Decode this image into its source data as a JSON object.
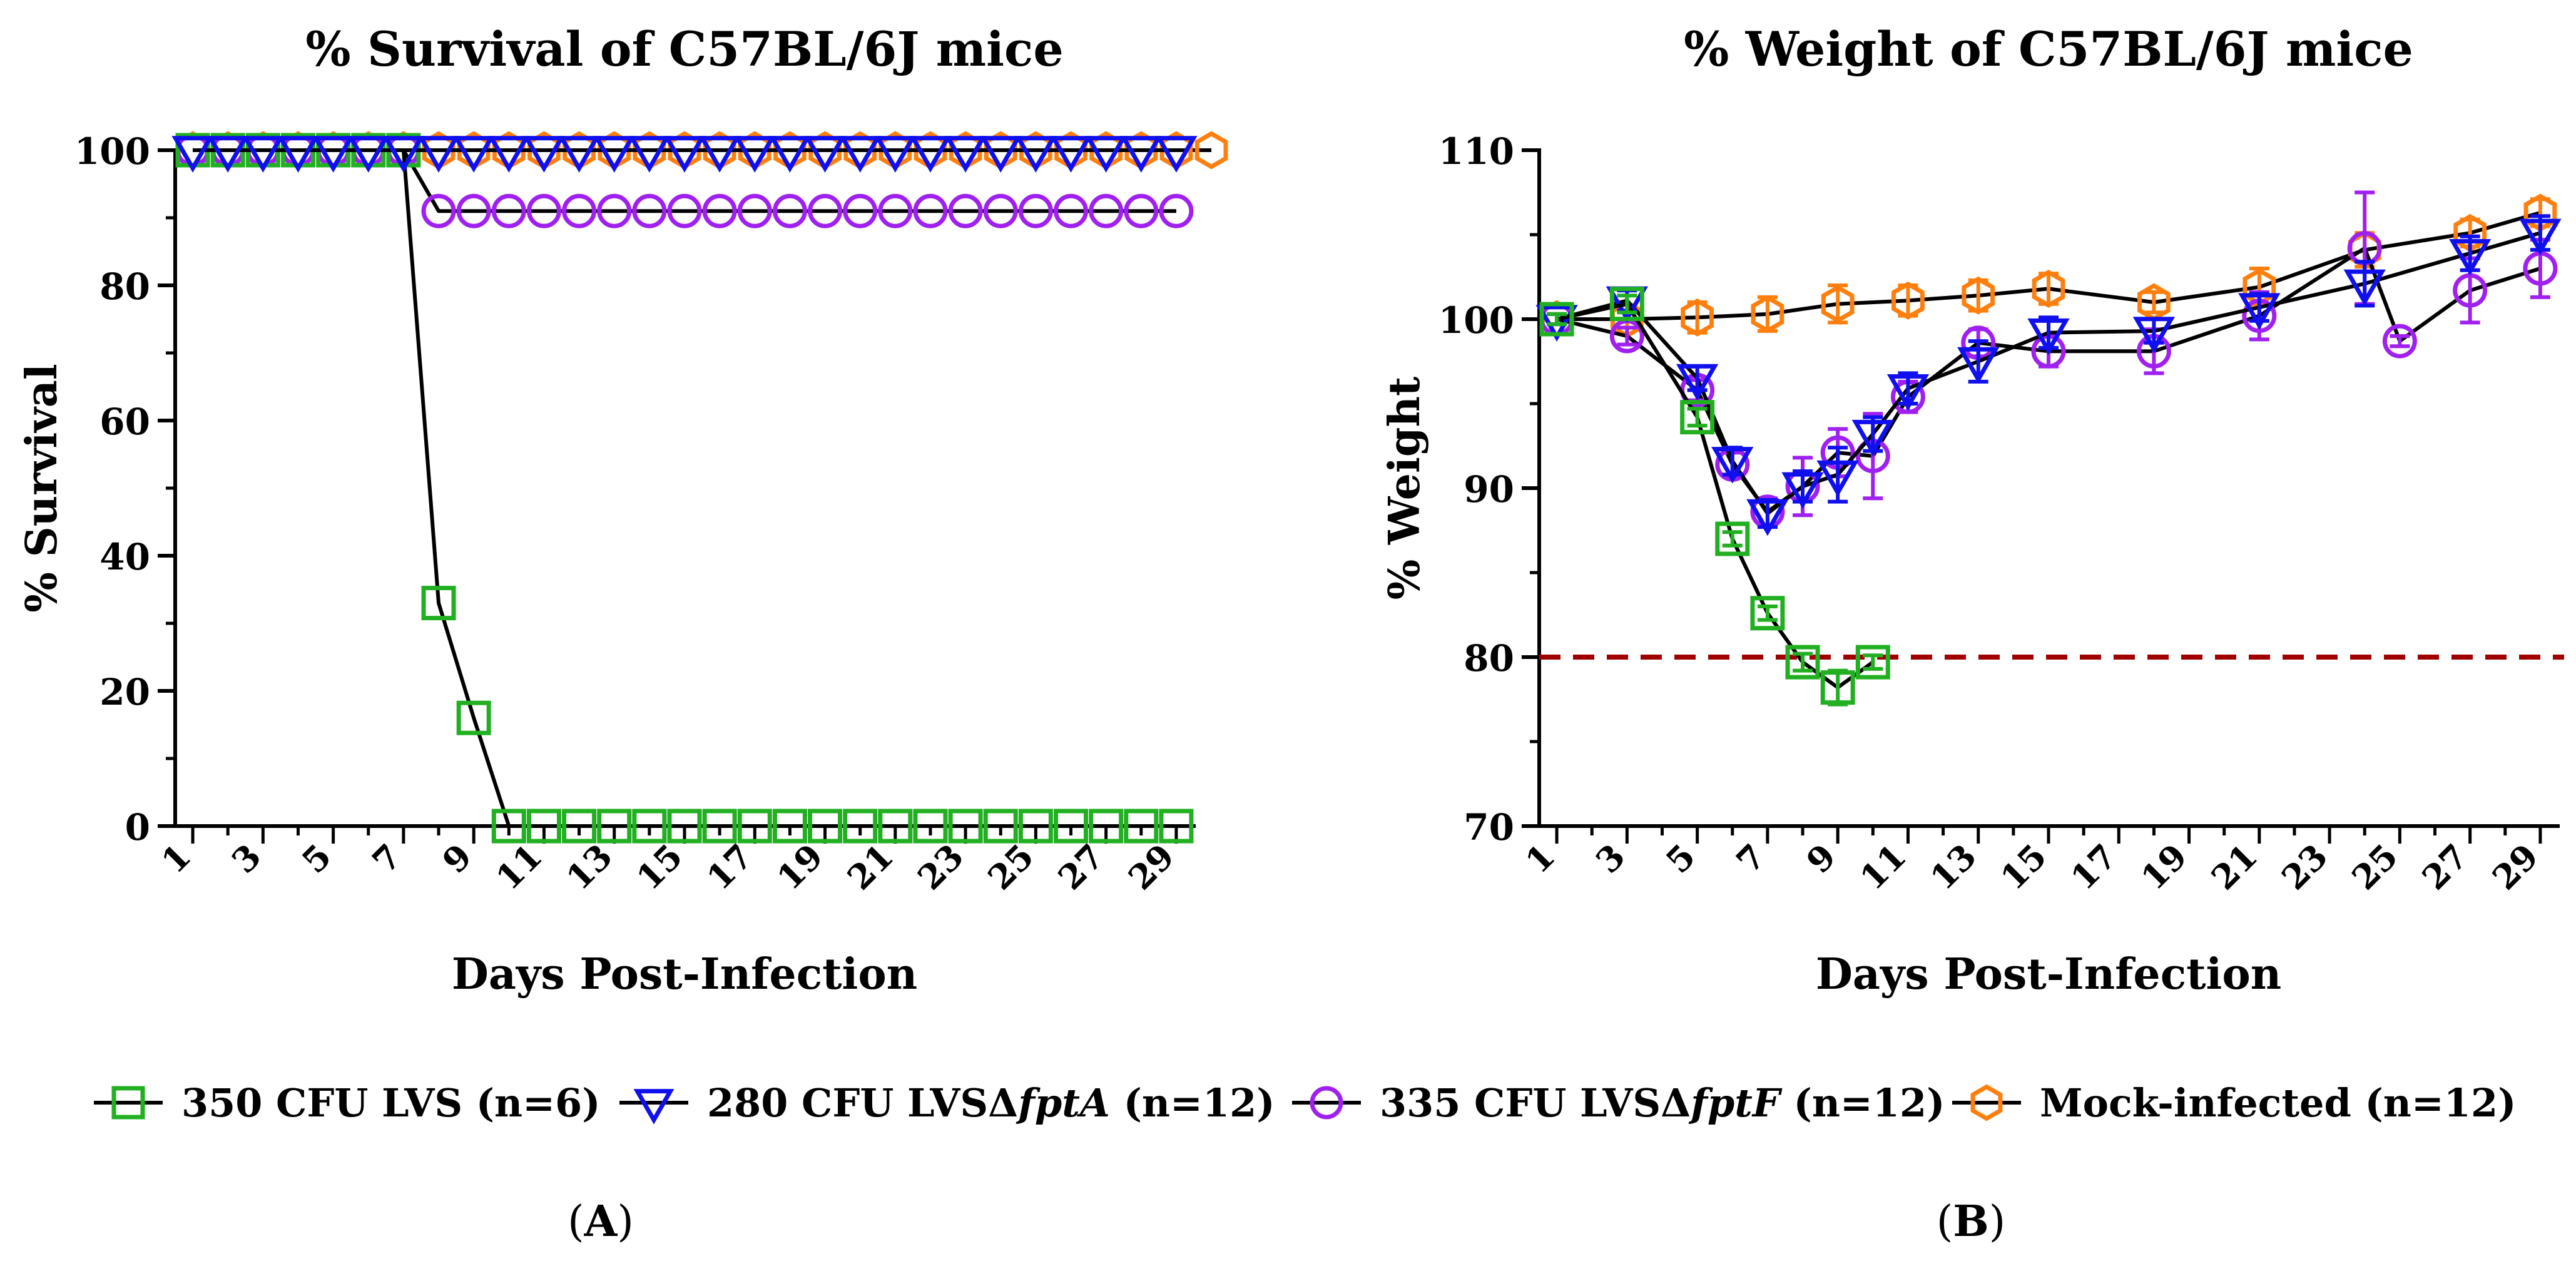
{
  "chart_data": [
    {
      "type": "line",
      "panel_label": "A",
      "title": "% Survival of C57BL/6J mice",
      "xlabel": "Days Post-Infection",
      "ylabel": "% Survival",
      "xlim": [
        0.5,
        29.5
      ],
      "ylim": [
        0,
        100
      ],
      "xticks": [
        1,
        3,
        5,
        7,
        9,
        11,
        13,
        15,
        17,
        19,
        21,
        23,
        25,
        27,
        29
      ],
      "yticks": [
        0,
        20,
        40,
        60,
        80,
        100
      ],
      "series": [
        {
          "name": "Mock-infected",
          "color": "#ff7f0e",
          "marker": "hexagon",
          "x": [
            1,
            2,
            3,
            4,
            5,
            6,
            7,
            8,
            9,
            10,
            11,
            12,
            13,
            14,
            15,
            16,
            17,
            18,
            19,
            20,
            21,
            22,
            23,
            24,
            25,
            26,
            27,
            28,
            29,
            30
          ],
          "y": [
            100,
            100,
            100,
            100,
            100,
            100,
            100,
            100,
            100,
            100,
            100,
            100,
            100,
            100,
            100,
            100,
            100,
            100,
            100,
            100,
            100,
            100,
            100,
            100,
            100,
            100,
            100,
            100,
            100,
            100
          ]
        },
        {
          "name": "335 CFU LVSΔfptF",
          "color": "#a020f0",
          "marker": "circle",
          "x": [
            1,
            2,
            3,
            4,
            5,
            6,
            7,
            8,
            9,
            10,
            11,
            12,
            13,
            14,
            15,
            16,
            17,
            18,
            19,
            20,
            21,
            22,
            23,
            24,
            25,
            26,
            27,
            28,
            29
          ],
          "y": [
            100,
            100,
            100,
            100,
            100,
            100,
            100,
            91,
            91,
            91,
            91,
            91,
            91,
            91,
            91,
            91,
            91,
            91,
            91,
            91,
            91,
            91,
            91,
            91,
            91,
            91,
            91,
            91,
            91
          ]
        },
        {
          "name": "350 CFU LVS",
          "color": "#22b022",
          "marker": "square",
          "x": [
            1,
            2,
            3,
            4,
            5,
            6,
            7,
            8,
            9,
            10,
            11,
            12,
            13,
            14,
            15,
            16,
            17,
            18,
            19,
            20,
            21,
            22,
            23,
            24,
            25,
            26,
            27,
            28,
            29
          ],
          "y": [
            100,
            100,
            100,
            100,
            100,
            100,
            100,
            33,
            16,
            0,
            0,
            0,
            0,
            0,
            0,
            0,
            0,
            0,
            0,
            0,
            0,
            0,
            0,
            0,
            0,
            0,
            0,
            0,
            0
          ]
        },
        {
          "name": "280 CFU LVSΔfptA",
          "color": "#1010ee",
          "marker": "triangle-down",
          "x": [
            1,
            2,
            3,
            4,
            5,
            6,
            7,
            8,
            9,
            10,
            11,
            12,
            13,
            14,
            15,
            16,
            17,
            18,
            19,
            20,
            21,
            22,
            23,
            24,
            25,
            26,
            27,
            28,
            29
          ],
          "y": [
            100,
            100,
            100,
            100,
            100,
            100,
            100,
            100,
            100,
            100,
            100,
            100,
            100,
            100,
            100,
            100,
            100,
            100,
            100,
            100,
            100,
            100,
            100,
            100,
            100,
            100,
            100,
            100,
            100
          ]
        }
      ]
    },
    {
      "type": "line",
      "panel_label": "B",
      "title": "% Weight of C57BL/6J mice",
      "xlabel": "Days Post-Infection",
      "ylabel": "% Weight",
      "xlim": [
        0.5,
        29.5
      ],
      "ylim": [
        70,
        110
      ],
      "xticks": [
        1,
        3,
        5,
        7,
        9,
        11,
        13,
        15,
        17,
        19,
        21,
        23,
        25,
        27,
        29
      ],
      "yticks": [
        70,
        80,
        90,
        100,
        110
      ],
      "reference_line": {
        "y": 80,
        "color": "#a00000",
        "style": "dashed"
      },
      "series": [
        {
          "name": "Mock-infected",
          "color": "#ff7f0e",
          "marker": "hexagon",
          "x": [
            1,
            3,
            5,
            7,
            9,
            11,
            13,
            15,
            18,
            21,
            24,
            27,
            29
          ],
          "y": [
            100,
            100,
            100.1,
            100.3,
            100.9,
            101.1,
            101.4,
            101.8,
            101.0,
            101.9,
            104.1,
            105.1,
            106.3
          ],
          "err": [
            0.3,
            0.5,
            0.9,
            1.0,
            1.1,
            0.9,
            0.9,
            0.9,
            0.6,
            1.1,
            1.0,
            0.8,
            0.8
          ]
        },
        {
          "name": "335 CFU LVSΔfptF",
          "color": "#a020f0",
          "marker": "circle",
          "x": [
            1,
            3,
            5,
            6,
            7,
            8,
            9,
            10,
            11,
            13,
            15,
            18,
            21,
            24,
            25,
            27,
            29
          ],
          "y": [
            100,
            99.0,
            95.8,
            91.4,
            88.6,
            90.1,
            92.1,
            91.9,
            95.4,
            98.6,
            98.1,
            98.1,
            100.2,
            104.2,
            98.7,
            101.7,
            103.0
          ],
          "err": [
            0.3,
            0.5,
            0.6,
            0.7,
            0.8,
            1.7,
            1.4,
            2.5,
            0.9,
            0.8,
            0.9,
            1.3,
            1.4,
            3.3,
            0.3,
            1.9,
            1.7
          ]
        },
        {
          "name": "280 CFU LVSΔfptA",
          "color": "#1010ee",
          "marker": "triangle-down",
          "x": [
            1,
            3,
            5,
            6,
            7,
            8,
            9,
            10,
            11,
            13,
            15,
            18,
            21,
            24,
            27,
            29
          ],
          "y": [
            100,
            101.1,
            96.5,
            91.6,
            88.5,
            90.1,
            90.8,
            93.2,
            95.9,
            97.5,
            99.2,
            99.3,
            100.7,
            102.1,
            103.9,
            105.1
          ],
          "err": [
            0.3,
            0.6,
            0.7,
            0.8,
            0.8,
            0.9,
            1.6,
            1.0,
            0.9,
            1.2,
            0.9,
            0.7,
            0.8,
            1.3,
            1.0,
            1.0
          ]
        },
        {
          "name": "350 CFU LVS",
          "color": "#22b022",
          "marker": "square",
          "x": [
            1,
            3,
            5,
            6,
            7,
            8,
            9,
            10
          ],
          "y": [
            100,
            100.9,
            94.2,
            87.0,
            82.6,
            79.7,
            78.2,
            79.7
          ],
          "err": [
            0.3,
            0.5,
            0.5,
            0.4,
            0.4,
            0.5,
            1.0,
            0.4
          ]
        }
      ]
    }
  ],
  "legend": [
    {
      "name": "350 CFU LVS",
      "prefix": "350 CFU LVS",
      "gene": "",
      "suffix": " (n=6)",
      "color": "#22b022",
      "marker": "square"
    },
    {
      "name": "280 CFU LVSΔfptA",
      "prefix": "280 CFU LVSΔ",
      "gene": "fptA",
      "suffix": " (n=12)",
      "color": "#1010ee",
      "marker": "triangle-down"
    },
    {
      "name": "335 CFU LVSΔfptF",
      "prefix": "335 CFU LVSΔ",
      "gene": "fptF",
      "suffix": " (n=12)",
      "color": "#a020f0",
      "marker": "circle"
    },
    {
      "name": "Mock-infected",
      "prefix": "Mock-infected",
      "gene": "",
      "suffix": " (n=12)",
      "color": "#ff7f0e",
      "marker": "hexagon"
    }
  ],
  "panel_labels": [
    {
      "label": "(A)",
      "letter": "A"
    },
    {
      "label": "(B)",
      "letter": "B"
    }
  ]
}
